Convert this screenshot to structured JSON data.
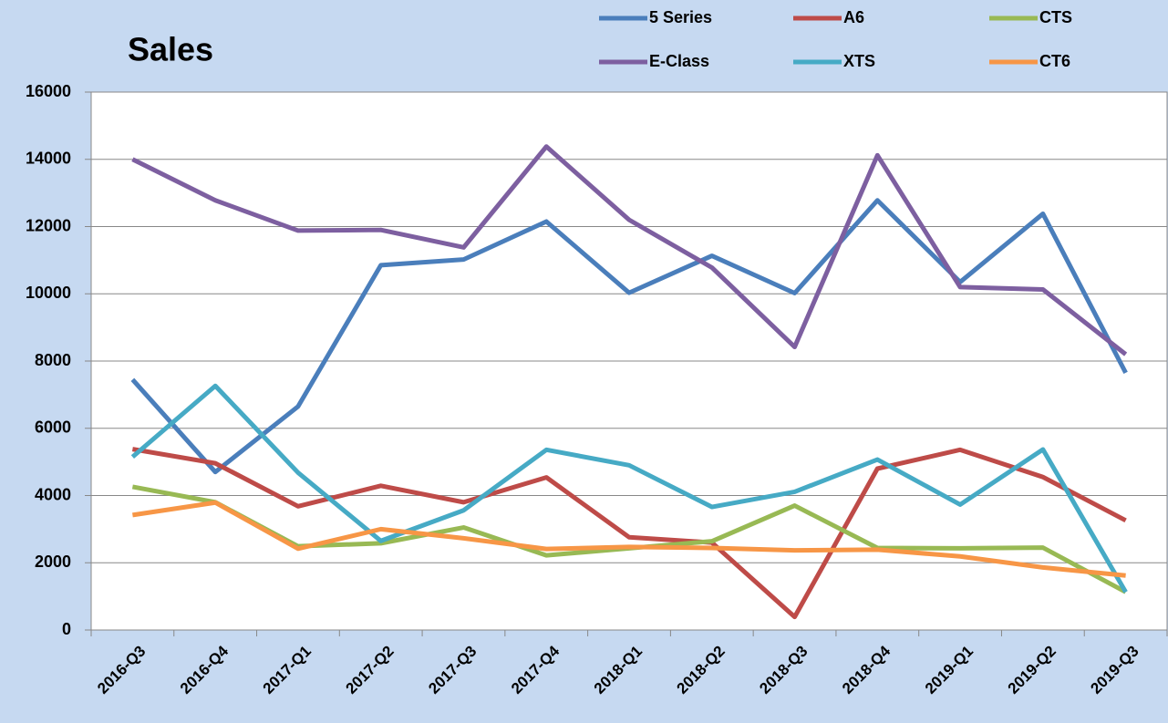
{
  "chart_data": {
    "type": "line",
    "title": "Sales",
    "categories": [
      "2016-Q3",
      "2016-Q4",
      "2017-Q1",
      "2017-Q2",
      "2017-Q3",
      "2017-Q4",
      "2018-Q1",
      "2018-Q2",
      "2018-Q3",
      "2018-Q4",
      "2019-Q1",
      "2019-Q2",
      "2019-Q3"
    ],
    "series": [
      {
        "name": "5 Series",
        "color": "#4a7ebb",
        "values": [
          7450,
          4700,
          6650,
          10850,
          11020,
          12150,
          10030,
          11130,
          10020,
          12780,
          10350,
          12380,
          7650
        ]
      },
      {
        "name": "A6",
        "color": "#be4b48",
        "values": [
          5380,
          4960,
          3680,
          4290,
          3800,
          4540,
          2760,
          2600,
          390,
          4800,
          5360,
          4550,
          3260
        ]
      },
      {
        "name": "CTS",
        "color": "#98b954",
        "values": [
          4260,
          3800,
          2490,
          2580,
          3050,
          2220,
          2430,
          2640,
          3700,
          2440,
          2430,
          2450,
          1130
        ]
      },
      {
        "name": "E-Class",
        "color": "#7d5fa0",
        "values": [
          14000,
          12780,
          11880,
          11900,
          11380,
          14380,
          12200,
          10780,
          8420,
          14120,
          10200,
          10130,
          8200
        ]
      },
      {
        "name": "XTS",
        "color": "#46aac5",
        "values": [
          5150,
          7260,
          4680,
          2650,
          3560,
          5360,
          4900,
          3660,
          4110,
          5070,
          3730,
          5370,
          1130
        ]
      },
      {
        "name": "CT6",
        "color": "#f79646",
        "values": [
          3420,
          3790,
          2420,
          3000,
          2730,
          2410,
          2470,
          2440,
          2370,
          2390,
          2190,
          1860,
          1620
        ]
      }
    ],
    "ylim": [
      0,
      16000
    ],
    "yticks": [
      0,
      2000,
      4000,
      6000,
      8000,
      10000,
      12000,
      14000,
      16000
    ],
    "grid": true,
    "legend": "top-right"
  }
}
